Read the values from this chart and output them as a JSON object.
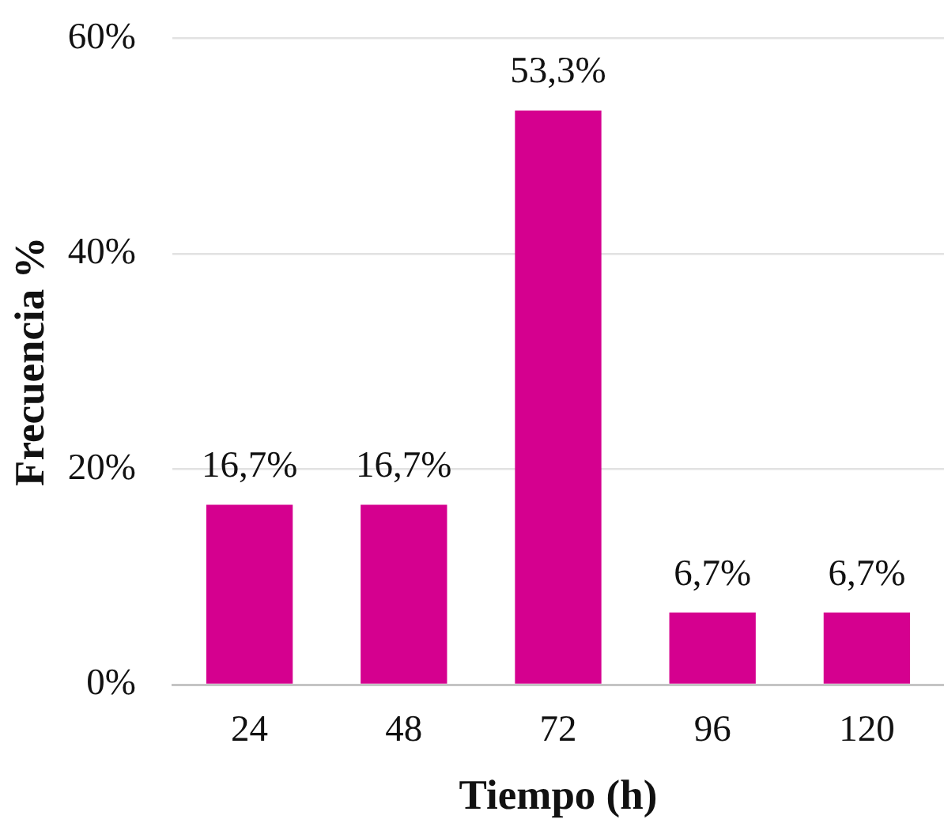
{
  "chart_data": {
    "type": "bar",
    "xlabel": "Tiempo (h)",
    "ylabel": "Frecuencia %",
    "categories": [
      "24",
      "48",
      "72",
      "96",
      "120"
    ],
    "values": [
      16.7,
      16.7,
      53.3,
      6.7,
      6.7
    ],
    "value_labels": [
      "16,7%",
      "16,7%",
      "53,3%",
      "6,7%",
      "6,7%"
    ],
    "color": "#d5008f",
    "ylim": [
      0,
      60
    ],
    "yticks": [
      {
        "value": 0,
        "label": "0%"
      },
      {
        "value": 20,
        "label": "20%"
      },
      {
        "value": 40,
        "label": "40%"
      },
      {
        "value": 60,
        "label": "60%"
      }
    ],
    "grid": "y"
  }
}
